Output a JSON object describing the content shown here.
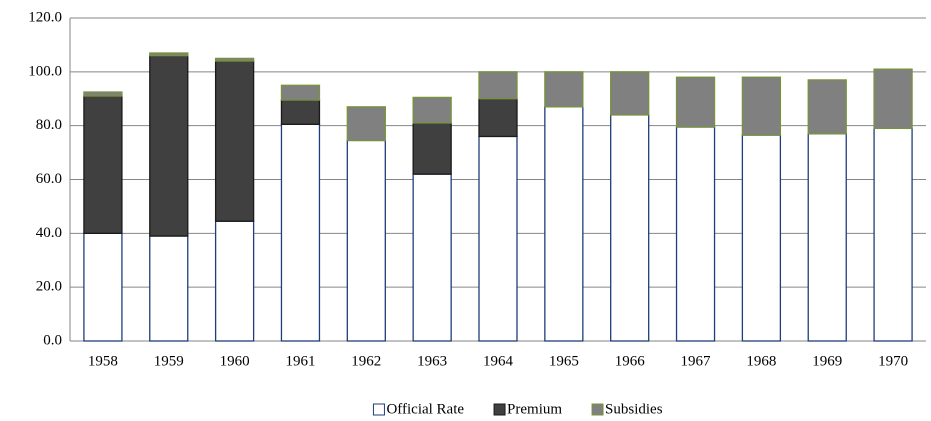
{
  "chart_data": {
    "type": "stacked-bar",
    "categories": [
      "1958",
      "1959",
      "1960",
      "1961",
      "1962",
      "1963",
      "1964",
      "1965",
      "1966",
      "1967",
      "1968",
      "1969",
      "1970"
    ],
    "series": [
      {
        "name": "Official Rate",
        "color": "#ffffff",
        "border": "#1f3d7a",
        "values": [
          40,
          39,
          44.5,
          80.5,
          74.5,
          62,
          76,
          87,
          84,
          79.5,
          76.5,
          77,
          79
        ]
      },
      {
        "name": "Premium",
        "color": "#404040",
        "border": "#1a1a1a",
        "values": [
          51,
          67,
          59.5,
          9,
          0,
          19,
          14,
          0,
          0,
          0,
          0,
          0,
          0
        ]
      },
      {
        "name": "Subsidies",
        "color": "#808080",
        "border": "#77933c",
        "values": [
          1.5,
          1,
          1,
          5.5,
          12.5,
          9.5,
          10,
          13,
          16,
          18.5,
          21.5,
          20,
          22
        ]
      }
    ],
    "ylim": [
      0,
      120
    ],
    "yticks": [
      {
        "value": 0,
        "label": "0.0"
      },
      {
        "value": 20,
        "label": "20.0"
      },
      {
        "value": 40,
        "label": "40.0"
      },
      {
        "value": 60,
        "label": "60.0"
      },
      {
        "value": 80,
        "label": "80.0"
      },
      {
        "value": 100,
        "label": "100.0"
      },
      {
        "value": 120,
        "label": "120.0"
      }
    ],
    "grid": true,
    "legend": "bottom"
  }
}
